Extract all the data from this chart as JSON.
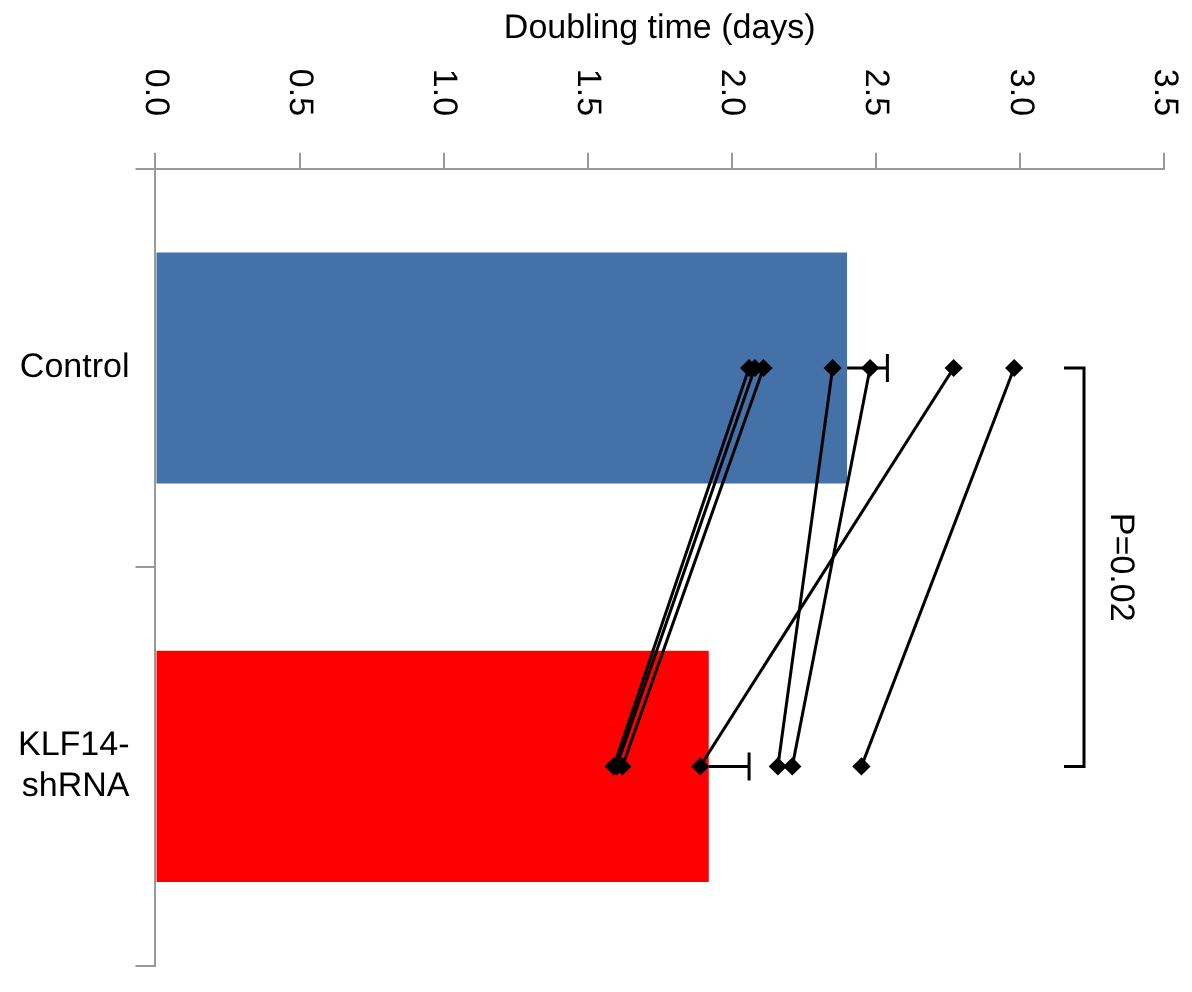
{
  "chart_data": {
    "type": "bar",
    "orientation": "horizontal",
    "xlabel": "Doubling time (days)",
    "categories": [
      "Control",
      "KLF14-shRNA"
    ],
    "series": [
      {
        "type": "bar",
        "colors": [
          "#4472a8",
          "#ff0000"
        ],
        "values": [
          2.4,
          1.92
        ],
        "errors": [
          [
            2.4,
            2.54
          ],
          [
            1.92,
            2.06
          ]
        ]
      },
      {
        "type": "line",
        "color": "#000000",
        "values": [
          2.06,
          1.59
        ]
      },
      {
        "type": "line",
        "color": "#000000",
        "values": [
          2.08,
          1.6
        ]
      },
      {
        "type": "line",
        "color": "#000000",
        "values": [
          2.11,
          1.62
        ]
      },
      {
        "type": "line",
        "color": "#000000",
        "values": [
          2.35,
          2.16
        ]
      },
      {
        "type": "line",
        "color": "#000000",
        "values": [
          2.48,
          2.21
        ]
      },
      {
        "type": "line",
        "color": "#000000",
        "values": [
          2.77,
          1.89
        ]
      },
      {
        "type": "line",
        "color": "#000000",
        "values": [
          2.98,
          2.45
        ]
      }
    ],
    "xlim": [
      0,
      3.5
    ],
    "xticks": [
      {
        "value": 0,
        "label": "0.0"
      },
      {
        "value": 0.5,
        "label": "0.5"
      },
      {
        "value": 1,
        "label": "1.0"
      },
      {
        "value": 1.5,
        "label": "1.5"
      },
      {
        "value": 2,
        "label": "2.0"
      },
      {
        "value": 2.5,
        "label": "2.5"
      },
      {
        "value": 3,
        "label": "3.0"
      },
      {
        "value": 3.5,
        "label": "3.5"
      }
    ],
    "marker": "diamond",
    "grid": false,
    "legend": false,
    "annotations": [
      "P=0.02"
    ]
  }
}
